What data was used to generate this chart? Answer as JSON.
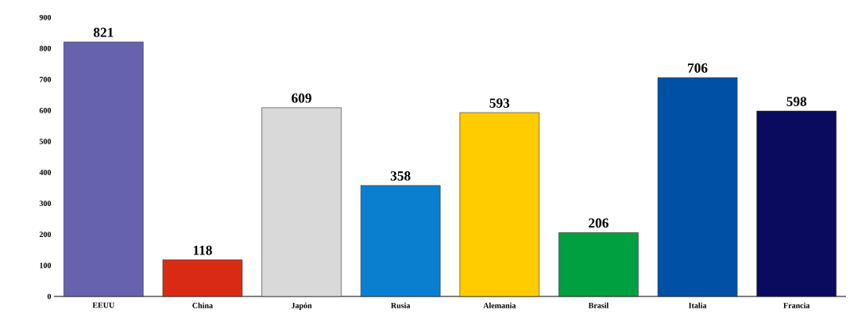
{
  "chart_data": {
    "type": "bar",
    "categories": [
      "EEUU",
      "China",
      "Japón",
      "Rusia",
      "Alemania",
      "Brasil",
      "Italia",
      "Francia"
    ],
    "values": [
      821,
      118,
      609,
      358,
      593,
      206,
      706,
      598
    ],
    "colors": [
      "#6762ad",
      "#d92b14",
      "#d9d9d9",
      "#0a7fcf",
      "#ffcc00",
      "#00a040",
      "#0050a5",
      "#0a0a5f"
    ],
    "ylim": [
      0,
      900
    ],
    "yticks": [
      0,
      100,
      200,
      300,
      400,
      500,
      600,
      700,
      800,
      900
    ],
    "data_labels": true
  }
}
